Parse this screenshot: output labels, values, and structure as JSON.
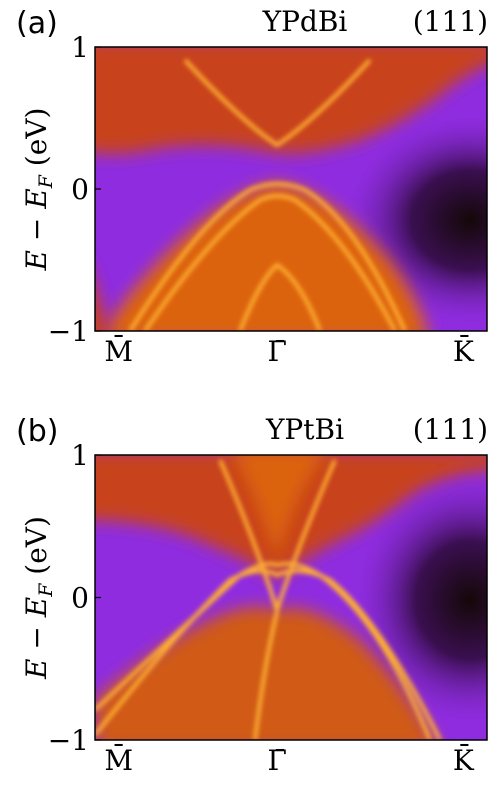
{
  "chart_data": [
    {
      "type": "heatmap",
      "panel": "(a)",
      "title": "YPdBi",
      "subtitle": "(111)",
      "y_label": [
        "E − E",
        "F",
        " (eV)"
      ],
      "categories": [
        "M̄",
        "Γ̄",
        "K̄"
      ],
      "ylim": [
        -1,
        1
      ],
      "yticks": [
        {
          "value": -1,
          "label": "−1"
        },
        0,
        1
      ]
    },
    {
      "type": "heatmap",
      "panel": "(b)",
      "title": "YPtBi",
      "subtitle": "(111)",
      "y_label": [
        "E − E",
        "F",
        " (eV)"
      ],
      "categories": [
        "M̄",
        "Γ̄",
        "K̄"
      ],
      "ylim": [
        -1,
        1
      ],
      "yticks": [
        {
          "value": -1,
          "label": "−1"
        },
        0,
        1
      ]
    }
  ]
}
